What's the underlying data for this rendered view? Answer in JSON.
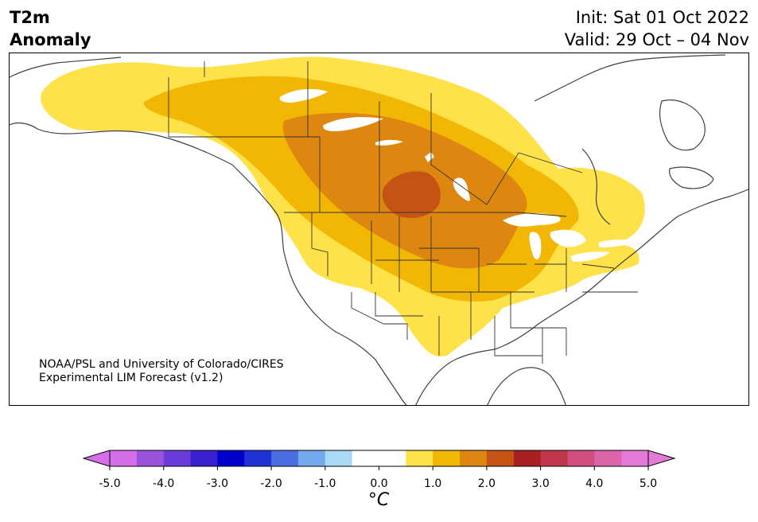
{
  "title": {
    "left_line1": "T2m",
    "left_line2": "Anomaly",
    "init": "Init: Sat 01 Oct 2022",
    "valid": "Valid: 29 Oct – 04 Nov"
  },
  "credit": {
    "line1": "NOAA/PSL and University of Colorado/CIRES",
    "line2": "Experimental LIM Forecast (v1.2)"
  },
  "colorbar": {
    "unit": "°C",
    "ticks": [
      "-5.0",
      "-4.0",
      "-3.0",
      "-2.0",
      "-1.0",
      "0.0",
      "1.0",
      "2.0",
      "3.0",
      "4.0",
      "5.0"
    ],
    "colors": [
      "#d66ee8",
      "#9b52dc",
      "#6c3ad8",
      "#3820cf",
      "#0000cd",
      "#2233d6",
      "#4a6ee0",
      "#75aaf0",
      "#aad8f7",
      "#ffffff",
      "#ffffff",
      "#ffe24a",
      "#f2b705",
      "#dd8710",
      "#c55414",
      "#a72020",
      "#c0364a",
      "#d04f7e",
      "#dc64a8",
      "#e47ad8"
    ],
    "under_color": "#d670e9",
    "over_color": "#e27ad6"
  },
  "anomaly_colors": {
    "level_0_5": "#ffe24a",
    "level_1_0": "#f2b705",
    "level_1_5": "#dd8710",
    "level_2_0": "#c55414",
    "lakes": "#ffffff"
  }
}
